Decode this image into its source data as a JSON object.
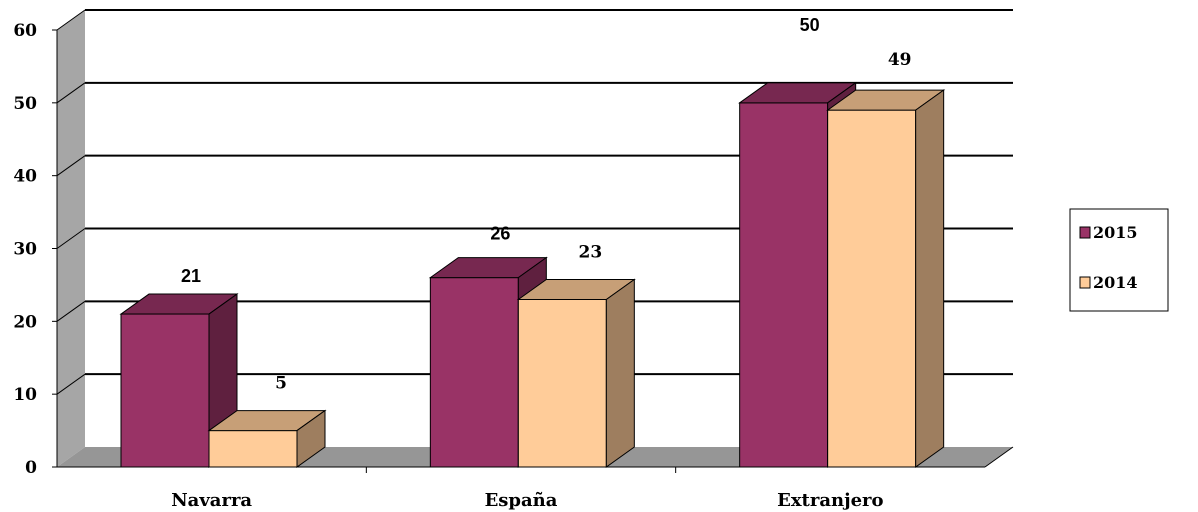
{
  "chart_data": {
    "type": "bar",
    "categories": [
      "Navarra",
      "España",
      "Extranjero"
    ],
    "series": [
      {
        "name": "2015",
        "values": [
          21,
          26,
          50
        ],
        "color": "#993366"
      },
      {
        "name": "2014",
        "values": [
          5,
          23,
          49
        ],
        "color": "#FFCC99"
      }
    ],
    "ylim": [
      0,
      60
    ],
    "yticks": [
      0,
      10,
      20,
      30,
      40,
      50,
      60
    ],
    "grid": true,
    "legend_position": "right",
    "style": "3d-clustered-column"
  }
}
